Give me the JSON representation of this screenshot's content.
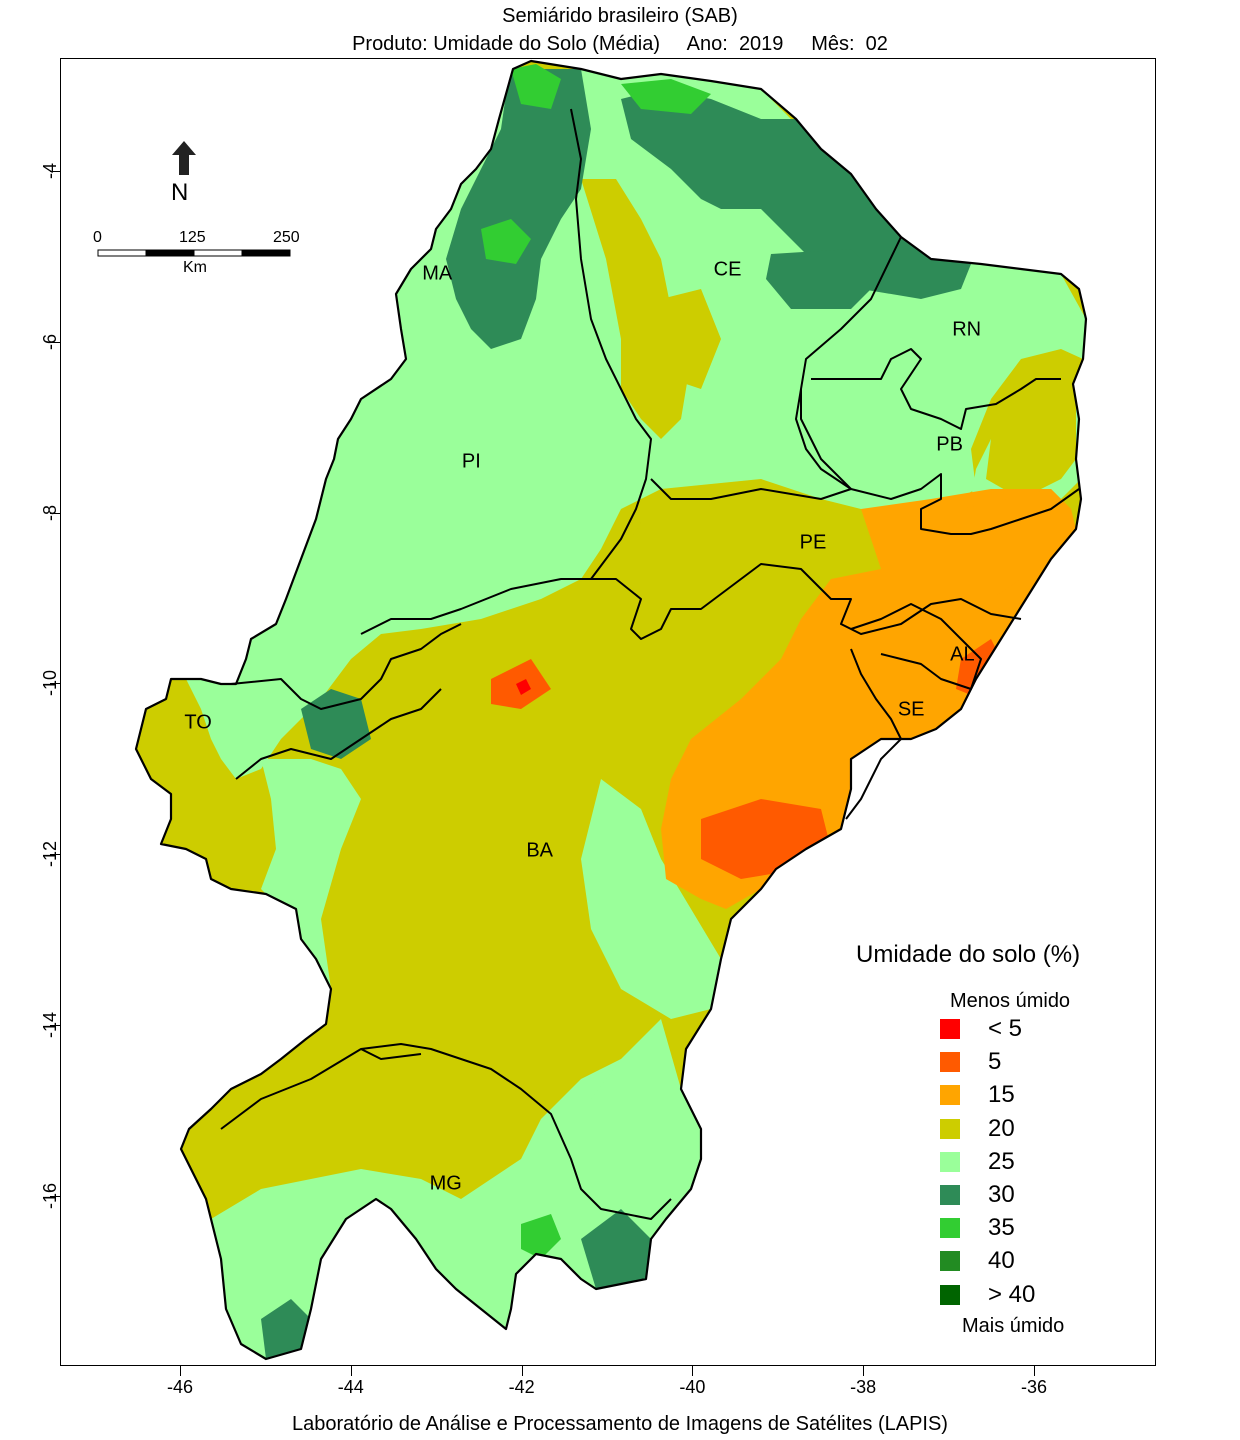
{
  "title": {
    "line1": "Semiárido brasileiro (SAB)",
    "line2": "Produto: Umidade do Solo (Média)     Ano:  2019     Mês:  02"
  },
  "axes": {
    "x_ticks": [
      "-46",
      "-44",
      "-42",
      "-40",
      "-38",
      "-36"
    ],
    "y_ticks": [
      "-4",
      "-6",
      "-8",
      "-10",
      "-12",
      "-14",
      "-16"
    ]
  },
  "north_arrow": {
    "label": "N",
    "icon": "north-arrow-icon"
  },
  "scale_bar": {
    "labels": [
      "0",
      "125",
      "250"
    ],
    "unit": "Km"
  },
  "states": [
    {
      "label": "MA",
      "lon": -43.0,
      "lat": -5.2
    },
    {
      "label": "CE",
      "lon": -39.6,
      "lat": -5.15
    },
    {
      "label": "RN",
      "lon": -36.8,
      "lat": -5.85
    },
    {
      "label": "PB",
      "lon": -37.0,
      "lat": -7.2
    },
    {
      "label": "PI",
      "lon": -42.6,
      "lat": -7.4
    },
    {
      "label": "PE",
      "lon": -38.6,
      "lat": -8.35
    },
    {
      "label": "AL",
      "lon": -36.85,
      "lat": -9.65
    },
    {
      "label": "SE",
      "lon": -37.45,
      "lat": -10.3
    },
    {
      "label": "TO",
      "lon": -45.8,
      "lat": -10.45
    },
    {
      "label": "BA",
      "lon": -41.8,
      "lat": -11.95
    },
    {
      "label": "MG",
      "lon": -42.9,
      "lat": -15.85
    }
  ],
  "legend": {
    "title": "Umidade do solo (%)",
    "top_label": "Menos úmido",
    "bottom_label": "Mais úmido",
    "items": [
      {
        "label": "< 5",
        "color": "#ff0000"
      },
      {
        "label": "5",
        "color": "#ff5a00"
      },
      {
        "label": "15",
        "color": "#ffa500"
      },
      {
        "label": "20",
        "color": "#cdcd00"
      },
      {
        "label": "25",
        "color": "#9aff9a"
      },
      {
        "label": "30",
        "color": "#2e8b57"
      },
      {
        "label": "35",
        "color": "#32cd32"
      },
      {
        "label": "40",
        "color": "#228b22"
      },
      {
        "label": "> 40",
        "color": "#006400"
      }
    ]
  },
  "credit": "Laboratório de Análise e Processamento de Imagens de Satélites (LAPIS)"
}
